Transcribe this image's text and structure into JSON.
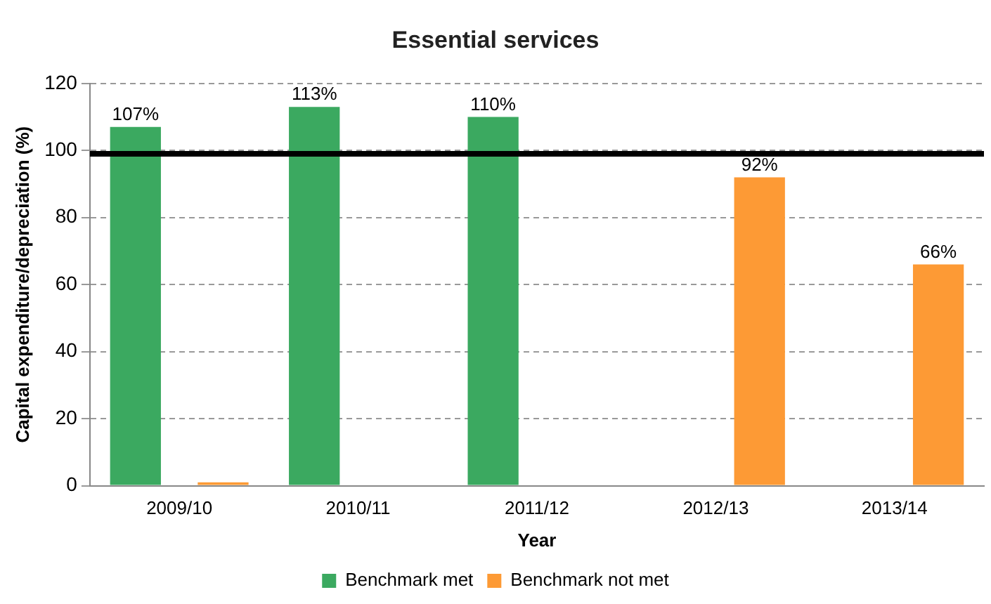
{
  "chart_data": {
    "type": "bar",
    "title": "Essential services",
    "xlabel": "Year",
    "ylabel": "Capital expenditure/depreciation (%)",
    "categories": [
      "2009/10",
      "2010/11",
      "2011/12",
      "2012/13",
      "2013/14"
    ],
    "series": [
      {
        "name": "Benchmark met",
        "color": "#3ba960",
        "values": [
          107,
          113,
          110,
          null,
          null
        ],
        "value_labels": [
          "107%",
          "113%",
          "110%",
          null,
          null
        ]
      },
      {
        "name": "Benchmark not met",
        "color": "#fd9a35",
        "values": [
          1,
          null,
          null,
          92,
          66
        ],
        "value_labels": [
          null,
          null,
          null,
          "92%",
          "66%"
        ]
      }
    ],
    "ylim": [
      0,
      120
    ],
    "yticks": [
      0,
      20,
      40,
      60,
      80,
      100,
      120
    ],
    "grid": "y",
    "legend": "bottom",
    "ref_lines": [
      {
        "axis": "y",
        "value": 99,
        "color": "#000000"
      }
    ]
  }
}
